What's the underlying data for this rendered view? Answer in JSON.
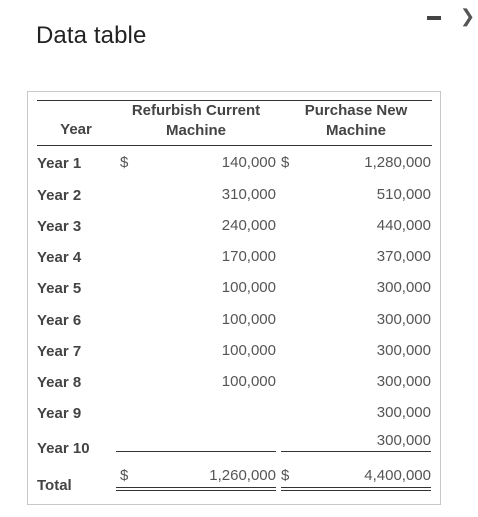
{
  "window": {
    "title": "Data table",
    "minimize_glyph": "—",
    "close_glyph": "›",
    "minimize_icon": "minimize-icon",
    "close_icon": "chevron-right-icon"
  },
  "table": {
    "headers": {
      "year": "Year",
      "refurbish_line1": "Refurbish Current",
      "refurbish_line2": "Machine",
      "purchase_line1": "Purchase New",
      "purchase_line2": "Machine"
    },
    "currency_symbol": "$",
    "rows": [
      {
        "year": "Year 1",
        "refurbish": "140,000",
        "purchase": "1,280,000"
      },
      {
        "year": "Year 2",
        "refurbish": "310,000",
        "purchase": "510,000"
      },
      {
        "year": "Year 3",
        "refurbish": "240,000",
        "purchase": "440,000"
      },
      {
        "year": "Year 4",
        "refurbish": "170,000",
        "purchase": "370,000"
      },
      {
        "year": "Year 5",
        "refurbish": "100,000",
        "purchase": "300,000"
      },
      {
        "year": "Year 6",
        "refurbish": "100,000",
        "purchase": "300,000"
      },
      {
        "year": "Year 7",
        "refurbish": "100,000",
        "purchase": "300,000"
      },
      {
        "year": "Year 8",
        "refurbish": "100,000",
        "purchase": "300,000"
      },
      {
        "year": "Year 9",
        "refurbish": "",
        "purchase": "300,000"
      },
      {
        "year": "Year 10",
        "refurbish": "",
        "purchase": "300,000"
      }
    ],
    "total": {
      "label": "Total",
      "refurbish": "1,260,000",
      "purchase": "4,400,000"
    }
  }
}
